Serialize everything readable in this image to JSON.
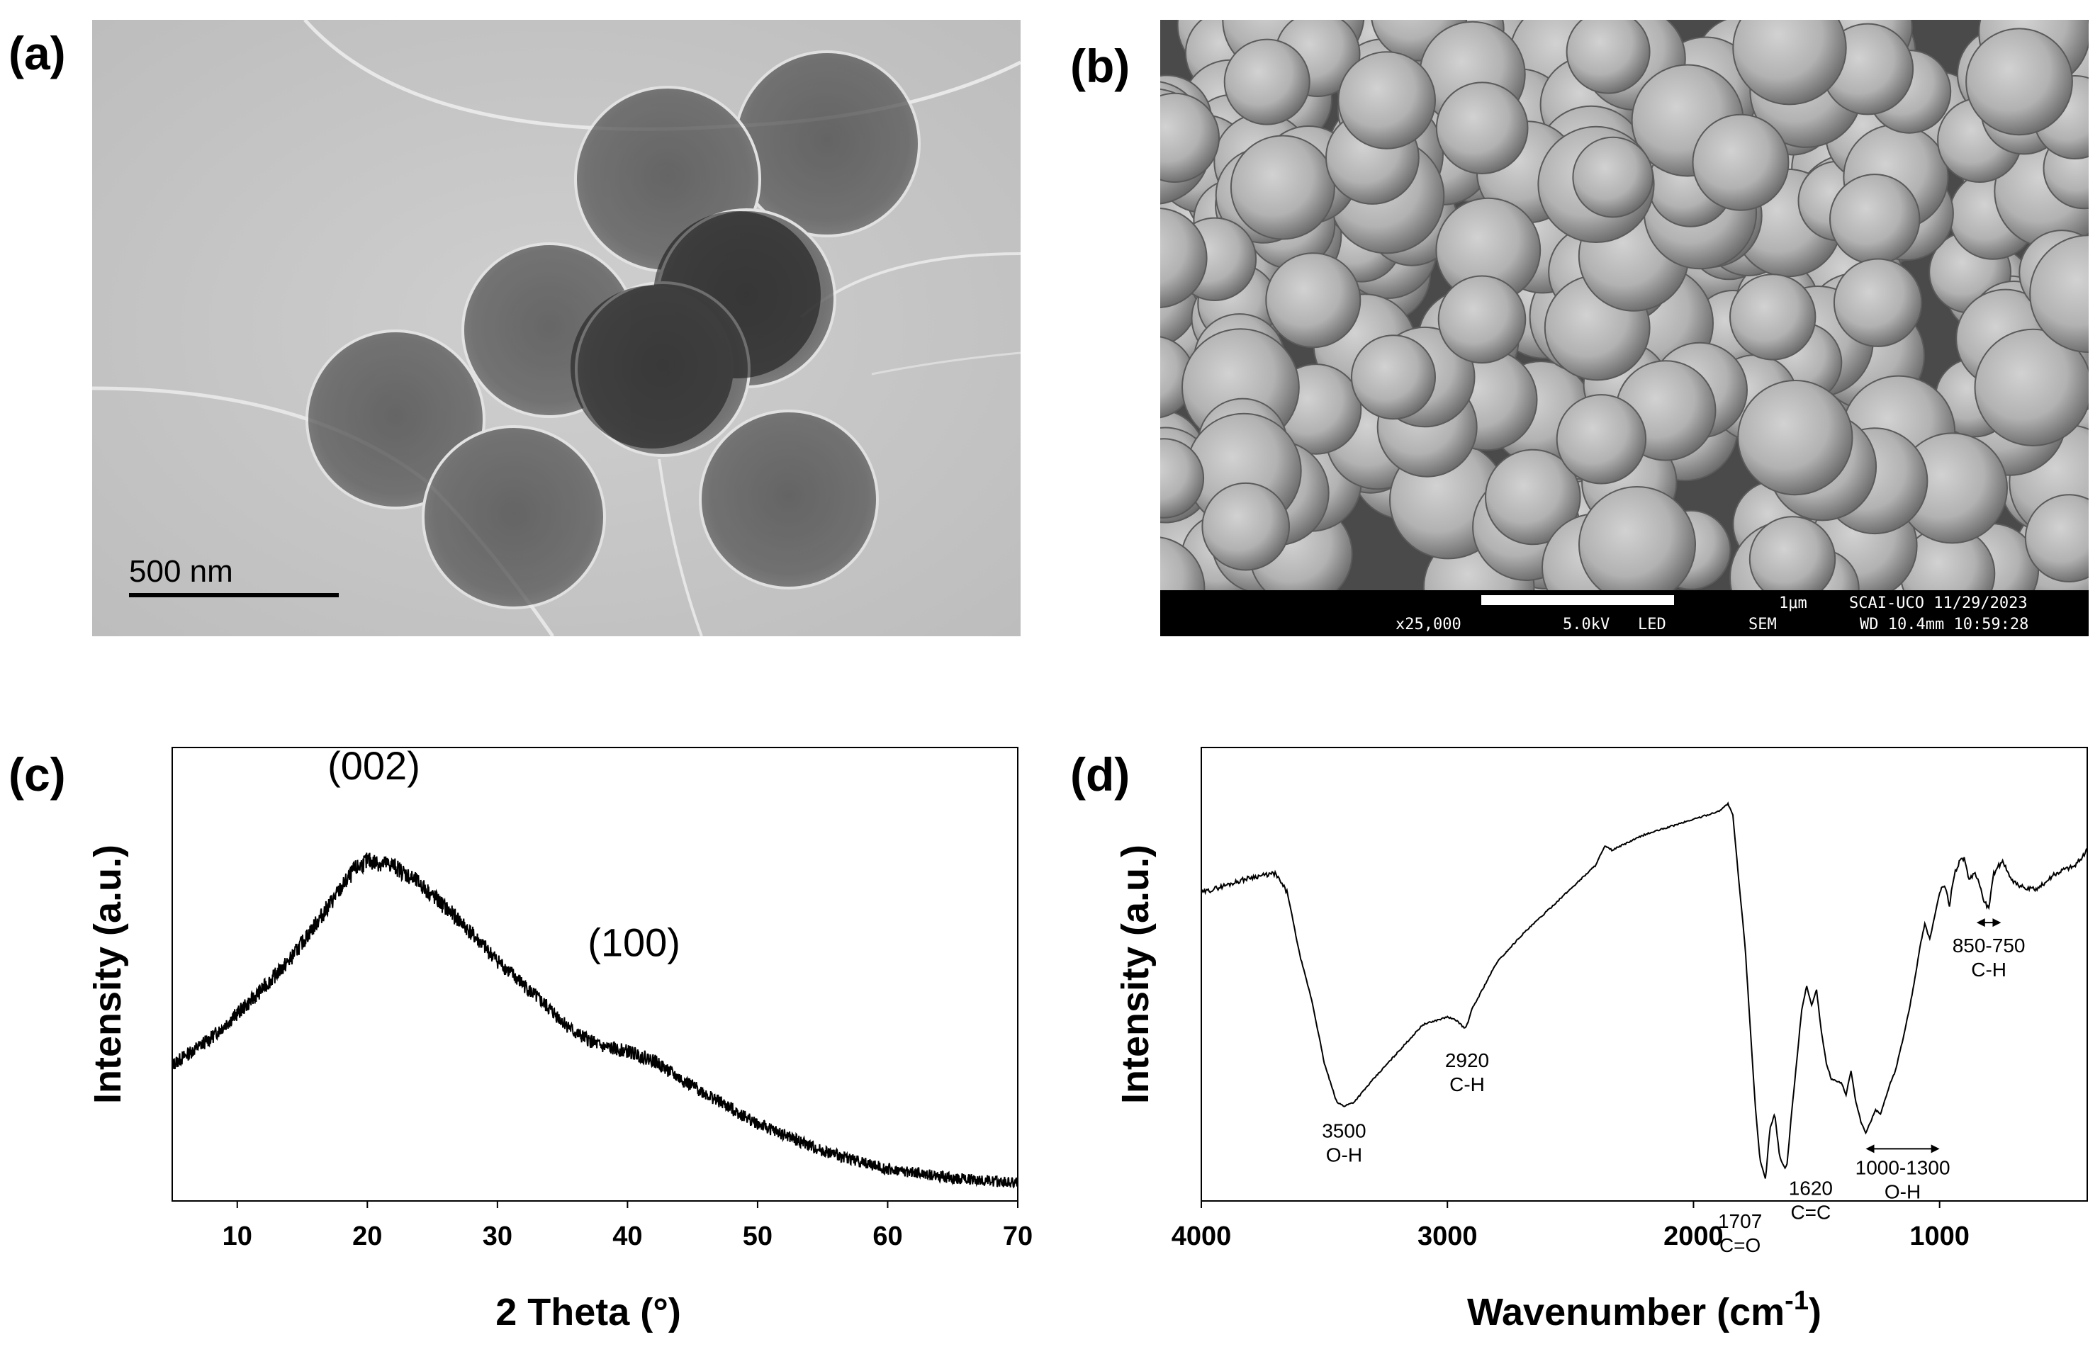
{
  "panels": {
    "a": {
      "label": "(a)",
      "scale_bar": "500 nm"
    },
    "b": {
      "label": "(b)",
      "sem_bar": {
        "scale": "1μm",
        "lab_date": "SCAI-UCO 11/29/2023",
        "magnification": "x25,000",
        "voltage_mode": "5.0kV   LED",
        "detector": "SEM",
        "wd_time": "WD 10.4mm 10:59:28"
      }
    },
    "c": {
      "label": "(c)"
    },
    "d": {
      "label": "(d)"
    }
  },
  "chart_data": [
    {
      "type": "line",
      "panel": "c",
      "xlabel": "2 Theta (°)",
      "ylabel": "Intensity (a.u.)",
      "xlim": [
        5,
        70
      ],
      "xticks": [
        10,
        20,
        30,
        40,
        50,
        60,
        70
      ],
      "yticks_shown": false,
      "grid": false,
      "noisy": true,
      "x": [
        5,
        8,
        11,
        14,
        17,
        19,
        20,
        22,
        24,
        27,
        30,
        33,
        36,
        38,
        40,
        42,
        44,
        47,
        50,
        55,
        60,
        65,
        70
      ],
      "y": [
        0.3,
        0.36,
        0.44,
        0.53,
        0.65,
        0.73,
        0.75,
        0.74,
        0.7,
        0.62,
        0.53,
        0.45,
        0.37,
        0.34,
        0.33,
        0.31,
        0.27,
        0.22,
        0.17,
        0.11,
        0.07,
        0.05,
        0.04
      ],
      "annotations": [
        {
          "text": "(002)",
          "x": 20.5,
          "y": 0.93
        },
        {
          "text": "(100)",
          "x": 40.5,
          "y": 0.54
        }
      ]
    },
    {
      "type": "line",
      "panel": "d",
      "xlabel": "Wavenumber (cm-1)",
      "xlabel_main": "Wavenumber (cm",
      "xlabel_sup": "-1",
      "xlabel_close": ")",
      "ylabel": "Intensity (a.u.)",
      "xlim": [
        4000,
        400
      ],
      "x_reversed": true,
      "xticks": [
        4000,
        3000,
        2000,
        1000
      ],
      "yticks_shown": false,
      "grid": false,
      "x": [
        4000,
        3900,
        3800,
        3700,
        3650,
        3600,
        3550,
        3500,
        3450,
        3420,
        3380,
        3300,
        3200,
        3100,
        3000,
        2960,
        2930,
        2920,
        2900,
        2850,
        2800,
        2700,
        2600,
        2500,
        2400,
        2360,
        2330,
        2300,
        2200,
        2100,
        2000,
        1900,
        1860,
        1840,
        1820,
        1790,
        1770,
        1750,
        1730,
        1707,
        1690,
        1670,
        1650,
        1630,
        1620,
        1600,
        1560,
        1540,
        1520,
        1500,
        1480,
        1460,
        1440,
        1400,
        1380,
        1360,
        1340,
        1320,
        1300,
        1280,
        1260,
        1240,
        1220,
        1200,
        1180,
        1150,
        1120,
        1100,
        1080,
        1060,
        1040,
        1020,
        1000,
        980,
        960,
        940,
        920,
        900,
        880,
        860,
        840,
        820,
        800,
        780,
        760,
        740,
        720,
        700,
        650,
        600,
        550,
        500,
        450,
        400
      ],
      "y": [
        0.74,
        0.76,
        0.78,
        0.79,
        0.74,
        0.58,
        0.46,
        0.3,
        0.2,
        0.19,
        0.2,
        0.26,
        0.33,
        0.4,
        0.42,
        0.41,
        0.39,
        0.4,
        0.44,
        0.5,
        0.56,
        0.63,
        0.69,
        0.75,
        0.81,
        0.86,
        0.85,
        0.86,
        0.89,
        0.91,
        0.93,
        0.95,
        0.97,
        0.94,
        0.8,
        0.6,
        0.4,
        0.2,
        0.05,
        0.0,
        0.13,
        0.17,
        0.06,
        0.03,
        0.04,
        0.18,
        0.44,
        0.5,
        0.45,
        0.49,
        0.38,
        0.3,
        0.26,
        0.25,
        0.22,
        0.28,
        0.2,
        0.15,
        0.12,
        0.15,
        0.18,
        0.17,
        0.21,
        0.25,
        0.28,
        0.36,
        0.45,
        0.52,
        0.6,
        0.66,
        0.62,
        0.68,
        0.74,
        0.76,
        0.71,
        0.79,
        0.82,
        0.83,
        0.77,
        0.79,
        0.77,
        0.72,
        0.7,
        0.79,
        0.81,
        0.82,
        0.79,
        0.77,
        0.75,
        0.75,
        0.78,
        0.8,
        0.81,
        0.85
      ],
      "annotations": [
        {
          "text": "3500",
          "text2": "O-H",
          "x": 3420,
          "y": 0.2
        },
        {
          "text": "2920",
          "text2": "C-H",
          "x": 2920,
          "y": 0.4
        },
        {
          "text": "1707",
          "text2": "C=O",
          "x": 1710,
          "y": 0.0
        },
        {
          "text": "1620",
          "text2": "C=C",
          "x": 1610,
          "y": 0.03
        },
        {
          "text": "1000-1300",
          "text2": "O-H",
          "x": 1150,
          "y": 0.12
        },
        {
          "text": "850-750",
          "text2": "C-H",
          "x": 800,
          "y": 0.7
        }
      ],
      "ranges": [
        {
          "from": 1300,
          "to": 1000
        },
        {
          "from": 850,
          "to": 750
        }
      ]
    }
  ]
}
